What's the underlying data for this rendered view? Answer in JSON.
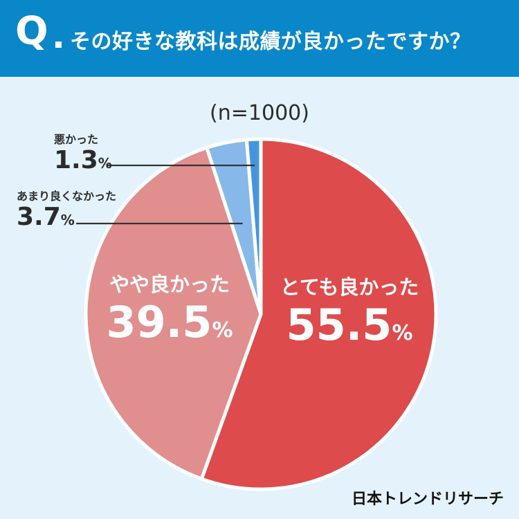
{
  "header": {
    "q_mark": "Q",
    "question": "その好きな教科は成績が良かったですか？"
  },
  "sample": "(n=1000)",
  "chart_data": {
    "type": "pie",
    "slices": [
      {
        "label": "とても良かった",
        "value": 55.5,
        "display": "55.5",
        "unit": "%",
        "color": "#dd4b4c"
      },
      {
        "label": "やや良かった",
        "value": 39.5,
        "display": "39.5",
        "unit": "%",
        "color": "#e18e8e"
      },
      {
        "label": "あまり良くなかった",
        "value": 3.7,
        "display": "3.7",
        "unit": "%",
        "color": "#86b9e9"
      },
      {
        "label": "悪かった",
        "value": 1.3,
        "display": "1.3",
        "unit": "%",
        "color": "#4794de"
      }
    ]
  },
  "brand": "日本トレンドリサーチ"
}
